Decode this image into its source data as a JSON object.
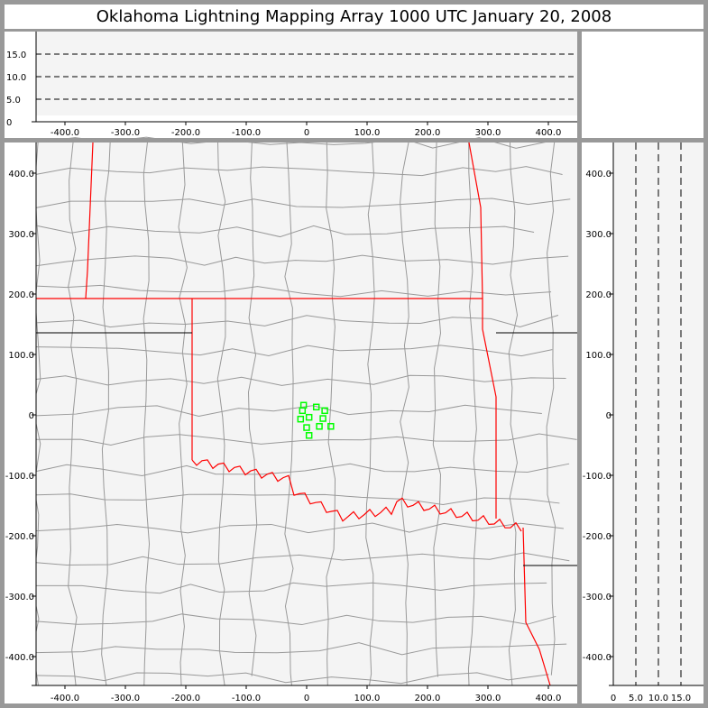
{
  "title": "Oklahoma Lightning Mapping Array   1000 UTC  January 20, 2008",
  "colors": {
    "state_border": "#ff0000",
    "county_border": "#999999",
    "source_marker": "#00ff00",
    "plot_bg": "#f4f4f4"
  },
  "top_panel": {
    "x_ticks": [
      "-400.0",
      "-300.0",
      "-200.0",
      "-100.0",
      "0",
      "100.0",
      "200.0",
      "300.0",
      "400.0"
    ],
    "y_ticks": [
      "0",
      "5.0",
      "10.0",
      "15.0"
    ]
  },
  "map_panel": {
    "x_ticks": [
      "-400.0",
      "-300.0",
      "-200.0",
      "-100.0",
      "0",
      "100.0",
      "200.0",
      "300.0",
      "400.0"
    ],
    "y_ticks": [
      "400.0",
      "300.0",
      "200.0",
      "100.0",
      "0",
      "-100.0",
      "-200.0",
      "-300.0",
      "-400.0"
    ],
    "x_range_km": [
      -450,
      450
    ],
    "y_range_km": [
      -450,
      450
    ]
  },
  "right_panel": {
    "x_ticks": [
      "0",
      "5.0",
      "10.0",
      "15.0"
    ],
    "y_ticks": [
      "400.0",
      "300.0",
      "200.0",
      "100.0",
      "0",
      "-100.0",
      "-200.0",
      "-300.0",
      "-400.0"
    ]
  },
  "sources_km": [
    [
      -5,
      16
    ],
    [
      -7,
      7
    ],
    [
      16,
      13
    ],
    [
      30,
      7
    ],
    [
      -10,
      -7
    ],
    [
      4,
      -4
    ],
    [
      27,
      -6
    ],
    [
      0,
      -21
    ],
    [
      21,
      -19
    ],
    [
      40,
      -19
    ],
    [
      4,
      -34
    ]
  ]
}
